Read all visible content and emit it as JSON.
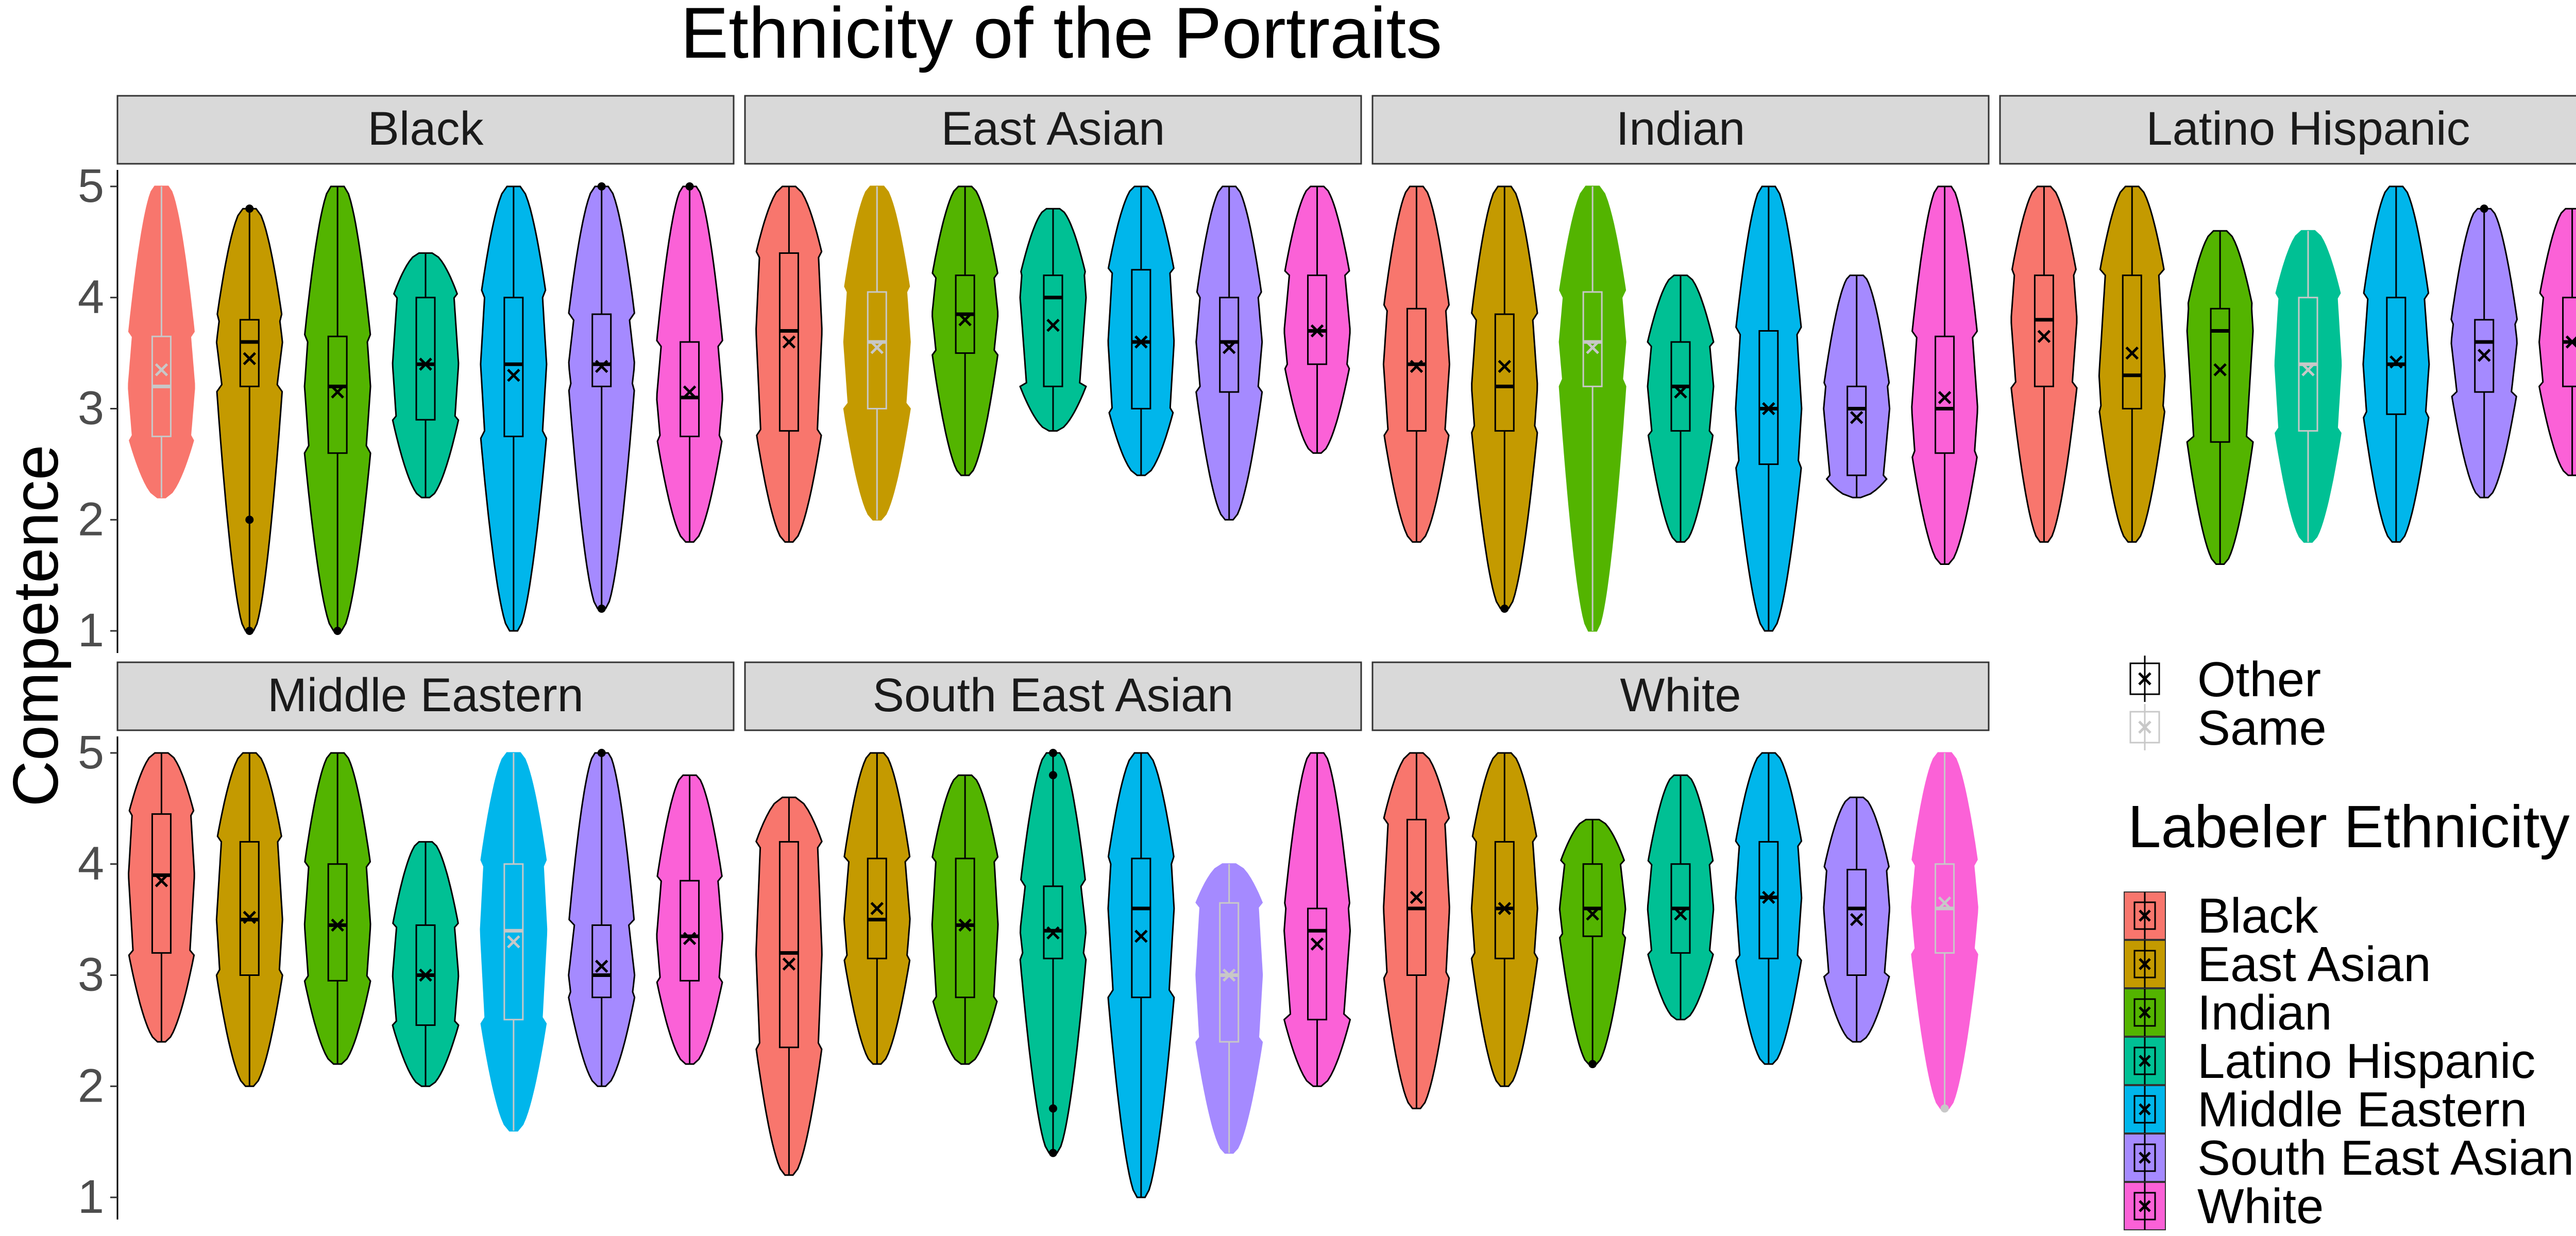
{
  "chart_data": {
    "type": "violin",
    "title": "Ethnicity of the Portraits",
    "ylabel": "Competence",
    "xlabel": "",
    "ylim": [
      1,
      5
    ],
    "yticks": [
      "1",
      "2",
      "3",
      "4",
      "5"
    ],
    "grid": false,
    "legend_placement": "right",
    "legend_shape": {
      "title": "",
      "entries": [
        "Other",
        "Same"
      ],
      "colors": [
        "#000000",
        "#c8c8c8"
      ]
    },
    "legend_fill": {
      "title": "Labeler Ethnicity",
      "entries": [
        "Black",
        "East Asian",
        "Indian",
        "Latino Hispanic",
        "Middle Eastern",
        "South East Asian",
        "White"
      ],
      "colors": [
        "#F8766D",
        "#C49A00",
        "#53B400",
        "#00C094",
        "#00B6EB",
        "#A58AFF",
        "#FB61D7"
      ]
    },
    "panels": [
      {
        "name": "Black",
        "groups": [
          {
            "min": 2.2,
            "q1": 2.75,
            "median": 3.2,
            "q3": 3.65,
            "max": 5.0,
            "mean": 3.35,
            "same": true
          },
          {
            "min": 1.0,
            "q1": 3.2,
            "median": 3.6,
            "q3": 3.8,
            "max": 4.8,
            "mean": 3.45,
            "same": false,
            "outliers": [
              1.0,
              2.0,
              4.8
            ]
          },
          {
            "min": 1.0,
            "q1": 2.6,
            "median": 3.2,
            "q3": 3.65,
            "max": 5.0,
            "mean": 3.15,
            "same": false,
            "outliers": [
              1.0
            ]
          },
          {
            "min": 2.2,
            "q1": 2.9,
            "median": 3.4,
            "q3": 4.0,
            "max": 4.4,
            "mean": 3.4,
            "same": false
          },
          {
            "min": 1.0,
            "q1": 2.75,
            "median": 3.4,
            "q3": 4.0,
            "max": 5.0,
            "mean": 3.3,
            "same": false
          },
          {
            "min": 1.2,
            "q1": 3.2,
            "median": 3.4,
            "q3": 3.85,
            "max": 5.0,
            "mean": 3.38,
            "same": false,
            "outliers": [
              1.2,
              5.0
            ]
          },
          {
            "min": 1.8,
            "q1": 2.75,
            "median": 3.1,
            "q3": 3.6,
            "max": 5.0,
            "mean": 3.15,
            "same": false,
            "outliers": [
              5.0
            ]
          }
        ]
      },
      {
        "name": "East Asian",
        "groups": [
          {
            "min": 1.8,
            "q1": 2.8,
            "median": 3.7,
            "q3": 4.4,
            "max": 5.0,
            "mean": 3.6,
            "same": false
          },
          {
            "min": 2.0,
            "q1": 3.0,
            "median": 3.6,
            "q3": 4.05,
            "max": 5.0,
            "mean": 3.55,
            "same": true
          },
          {
            "min": 2.4,
            "q1": 3.5,
            "median": 3.85,
            "q3": 4.2,
            "max": 5.0,
            "mean": 3.8,
            "same": false
          },
          {
            "min": 2.8,
            "q1": 3.2,
            "median": 4.0,
            "q3": 4.2,
            "max": 4.8,
            "mean": 3.75,
            "same": false
          },
          {
            "min": 2.4,
            "q1": 3.0,
            "median": 3.6,
            "q3": 4.25,
            "max": 5.0,
            "mean": 3.6,
            "same": false
          },
          {
            "min": 2.0,
            "q1": 3.15,
            "median": 3.6,
            "q3": 4.0,
            "max": 5.0,
            "mean": 3.55,
            "same": false
          },
          {
            "min": 2.6,
            "q1": 3.4,
            "median": 3.7,
            "q3": 4.2,
            "max": 5.0,
            "mean": 3.7,
            "same": false
          }
        ]
      },
      {
        "name": "Indian",
        "groups": [
          {
            "min": 1.8,
            "q1": 2.8,
            "median": 3.4,
            "q3": 3.9,
            "max": 5.0,
            "mean": 3.38,
            "same": false
          },
          {
            "min": 1.2,
            "q1": 2.8,
            "median": 3.2,
            "q3": 3.85,
            "max": 5.0,
            "mean": 3.38,
            "same": false,
            "outliers": [
              1.2
            ]
          },
          {
            "min": 1.0,
            "q1": 3.2,
            "median": 3.6,
            "q3": 4.05,
            "max": 5.0,
            "mean": 3.55,
            "same": true
          },
          {
            "min": 1.8,
            "q1": 2.8,
            "median": 3.2,
            "q3": 3.6,
            "max": 4.2,
            "mean": 3.15,
            "same": false
          },
          {
            "min": 1.0,
            "q1": 2.5,
            "median": 3.0,
            "q3": 3.7,
            "max": 5.0,
            "mean": 3.0,
            "same": false
          },
          {
            "min": 2.2,
            "q1": 2.4,
            "median": 3.0,
            "q3": 3.2,
            "max": 4.2,
            "mean": 2.92,
            "same": false
          },
          {
            "min": 1.6,
            "q1": 2.6,
            "median": 3.0,
            "q3": 3.65,
            "max": 5.0,
            "mean": 3.1,
            "same": false
          }
        ]
      },
      {
        "name": "Latino Hispanic",
        "groups": [
          {
            "min": 1.8,
            "q1": 3.2,
            "median": 3.8,
            "q3": 4.2,
            "max": 5.0,
            "mean": 3.65,
            "same": false
          },
          {
            "min": 1.8,
            "q1": 3.0,
            "median": 3.3,
            "q3": 4.2,
            "max": 5.0,
            "mean": 3.5,
            "same": false
          },
          {
            "min": 1.6,
            "q1": 2.7,
            "median": 3.7,
            "q3": 3.9,
            "max": 4.6,
            "mean": 3.35,
            "same": false
          },
          {
            "min": 1.8,
            "q1": 2.8,
            "median": 3.4,
            "q3": 4.0,
            "max": 4.6,
            "mean": 3.35,
            "same": true
          },
          {
            "min": 1.8,
            "q1": 2.95,
            "median": 3.4,
            "q3": 4.0,
            "max": 5.0,
            "mean": 3.42,
            "same": false
          },
          {
            "min": 2.2,
            "q1": 3.15,
            "median": 3.6,
            "q3": 3.8,
            "max": 4.8,
            "mean": 3.48,
            "same": false,
            "outliers": [
              4.8
            ]
          },
          {
            "min": 2.4,
            "q1": 3.2,
            "median": 3.6,
            "q3": 4.0,
            "max": 4.8,
            "mean": 3.6,
            "same": false
          }
        ]
      },
      {
        "name": "Middle Eastern",
        "groups": [
          {
            "min": 2.4,
            "q1": 3.2,
            "median": 3.9,
            "q3": 4.45,
            "max": 5.0,
            "mean": 3.85,
            "same": false
          },
          {
            "min": 2.0,
            "q1": 3.0,
            "median": 3.5,
            "q3": 4.2,
            "max": 5.0,
            "mean": 3.52,
            "same": false
          },
          {
            "min": 2.2,
            "q1": 2.95,
            "median": 3.45,
            "q3": 4.0,
            "max": 5.0,
            "mean": 3.45,
            "same": false
          },
          {
            "min": 2.0,
            "q1": 2.55,
            "median": 3.0,
            "q3": 3.45,
            "max": 4.2,
            "mean": 3.0,
            "same": false
          },
          {
            "min": 1.6,
            "q1": 2.6,
            "median": 3.4,
            "q3": 4.0,
            "max": 5.0,
            "mean": 3.3,
            "same": true
          },
          {
            "min": 2.0,
            "q1": 2.8,
            "median": 3.0,
            "q3": 3.45,
            "max": 5.0,
            "mean": 3.08,
            "same": false,
            "outliers": [
              5.0
            ]
          },
          {
            "min": 2.2,
            "q1": 2.95,
            "median": 3.35,
            "q3": 3.85,
            "max": 4.8,
            "mean": 3.33,
            "same": false
          }
        ]
      },
      {
        "name": "South East Asian",
        "groups": [
          {
            "min": 1.2,
            "q1": 2.35,
            "median": 3.2,
            "q3": 4.2,
            "max": 4.6,
            "mean": 3.1,
            "same": false
          },
          {
            "min": 2.2,
            "q1": 3.15,
            "median": 3.5,
            "q3": 4.05,
            "max": 5.0,
            "mean": 3.6,
            "same": false
          },
          {
            "min": 2.2,
            "q1": 2.8,
            "median": 3.45,
            "q3": 4.05,
            "max": 4.8,
            "mean": 3.45,
            "same": false
          },
          {
            "min": 1.4,
            "q1": 3.15,
            "median": 3.4,
            "q3": 3.8,
            "max": 5.0,
            "mean": 3.38,
            "same": false,
            "outliers": [
              1.4,
              1.8,
              4.8,
              5.0
            ]
          },
          {
            "min": 1.0,
            "q1": 2.8,
            "median": 3.6,
            "q3": 4.05,
            "max": 5.0,
            "mean": 3.35,
            "same": false
          },
          {
            "min": 1.4,
            "q1": 2.4,
            "median": 3.0,
            "q3": 3.65,
            "max": 4.0,
            "mean": 3.0,
            "same": true
          },
          {
            "min": 2.0,
            "q1": 2.6,
            "median": 3.4,
            "q3": 3.6,
            "max": 5.0,
            "mean": 3.28,
            "same": false
          }
        ]
      },
      {
        "name": "White",
        "groups": [
          {
            "min": 1.8,
            "q1": 3.0,
            "median": 3.6,
            "q3": 4.4,
            "max": 5.0,
            "mean": 3.7,
            "same": false
          },
          {
            "min": 2.0,
            "q1": 3.15,
            "median": 3.6,
            "q3": 4.2,
            "max": 5.0,
            "mean": 3.6,
            "same": false
          },
          {
            "min": 2.2,
            "q1": 3.35,
            "median": 3.6,
            "q3": 4.0,
            "max": 4.4,
            "mean": 3.55,
            "same": false,
            "outliers": [
              2.2
            ]
          },
          {
            "min": 2.6,
            "q1": 3.2,
            "median": 3.6,
            "q3": 4.0,
            "max": 4.8,
            "mean": 3.55,
            "same": false
          },
          {
            "min": 2.2,
            "q1": 3.15,
            "median": 3.7,
            "q3": 4.2,
            "max": 5.0,
            "mean": 3.7,
            "same": false
          },
          {
            "min": 2.4,
            "q1": 3.0,
            "median": 3.6,
            "q3": 3.95,
            "max": 4.6,
            "mean": 3.5,
            "same": false
          },
          {
            "min": 1.8,
            "q1": 3.2,
            "median": 3.6,
            "q3": 4.0,
            "max": 5.0,
            "mean": 3.65,
            "same": true,
            "outliers": [
              1.8
            ]
          }
        ]
      }
    ]
  }
}
